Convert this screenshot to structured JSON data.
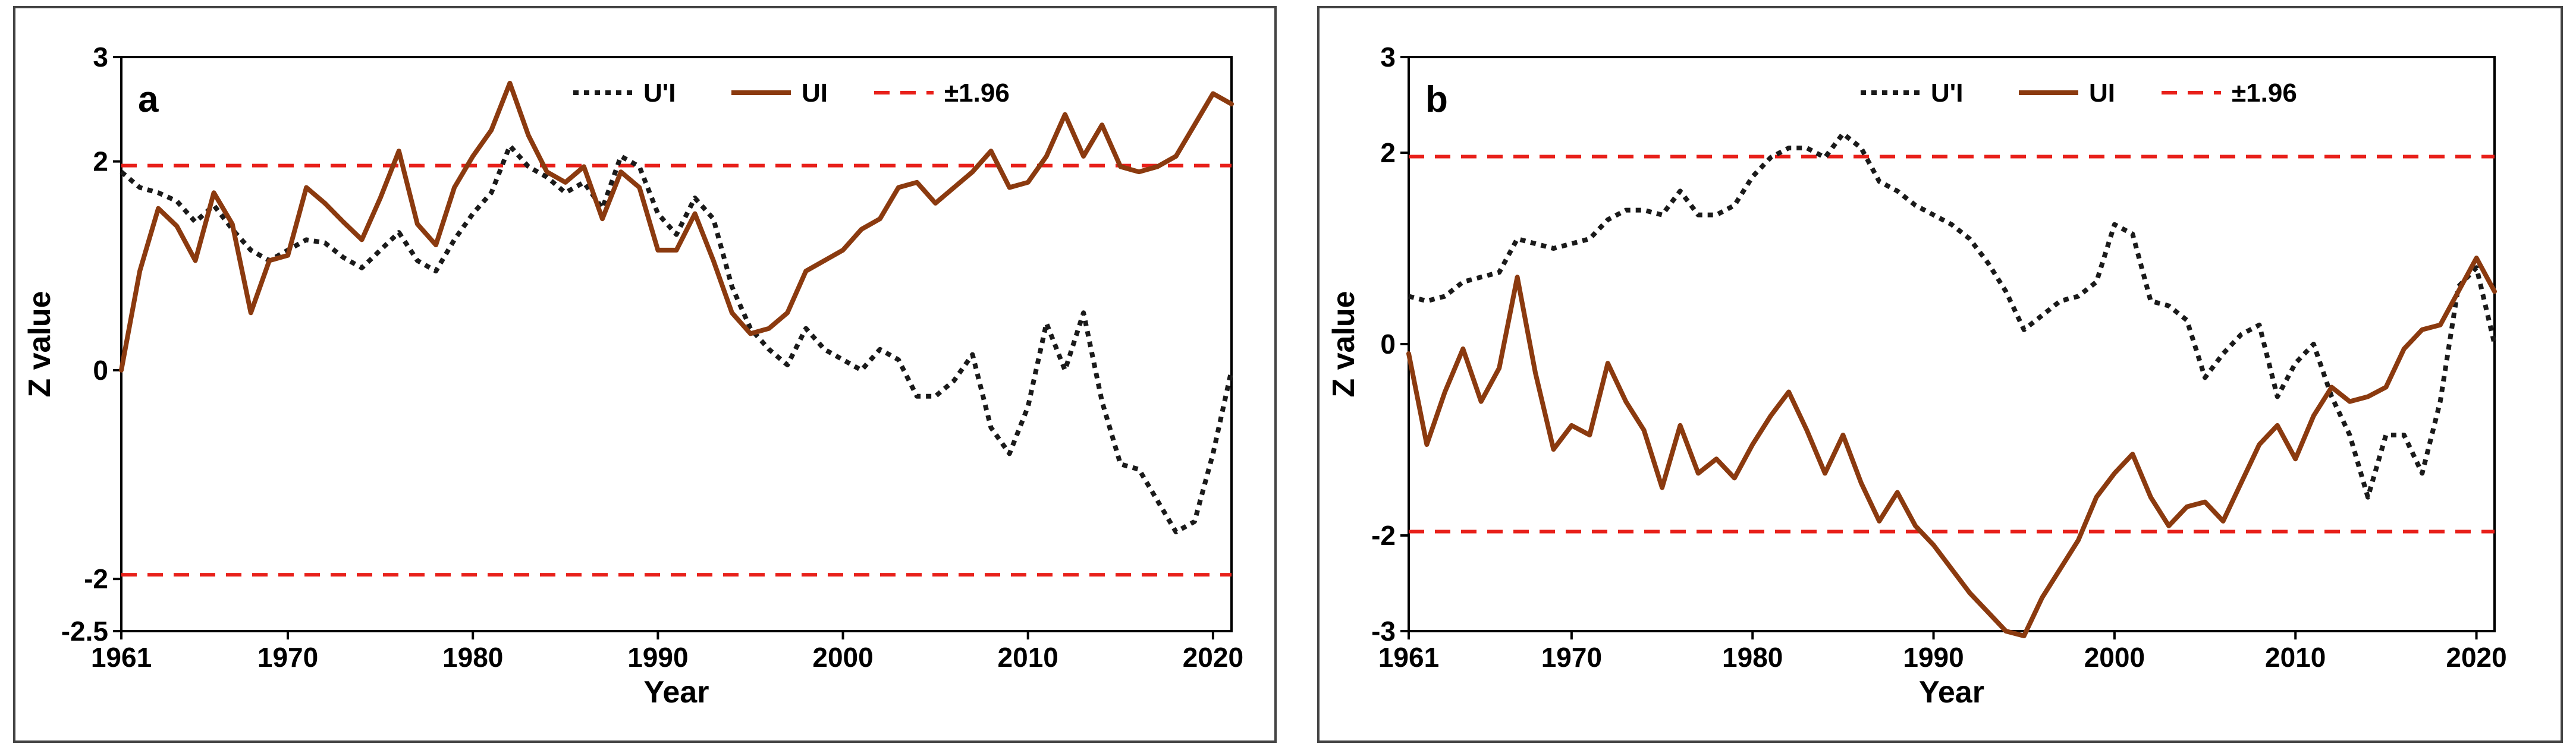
{
  "chart_data": [
    {
      "type": "line",
      "panel_label": "a",
      "xlabel": "Year",
      "ylabel": "Z value",
      "xlim": [
        1961,
        2021
      ],
      "ylim": [
        -2.5,
        3
      ],
      "x_ticks": [
        1961,
        1970,
        1980,
        1990,
        2000,
        2010,
        2020
      ],
      "x_tick_labels": [
        "1961",
        "1970",
        "1980",
        "1990",
        "2000",
        "2010",
        "2020"
      ],
      "y_ticks": [
        -2.5,
        -2,
        0,
        2,
        3
      ],
      "y_tick_labels": [
        "-2.5",
        "-2",
        "0",
        "2",
        "3"
      ],
      "threshold": 1.96,
      "x": [
        1961,
        1962,
        1963,
        1964,
        1965,
        1966,
        1967,
        1968,
        1969,
        1970,
        1971,
        1972,
        1973,
        1974,
        1975,
        1976,
        1977,
        1978,
        1979,
        1980,
        1981,
        1982,
        1983,
        1984,
        1985,
        1986,
        1987,
        1988,
        1989,
        1990,
        1991,
        1992,
        1993,
        1994,
        1995,
        1996,
        1997,
        1998,
        1999,
        2000,
        2001,
        2002,
        2003,
        2004,
        2005,
        2006,
        2007,
        2008,
        2009,
        2010,
        2011,
        2012,
        2013,
        2014,
        2015,
        2016,
        2017,
        2018,
        2019,
        2020,
        2021
      ],
      "series": [
        {
          "name": "U'I",
          "color": "#1a1a1a",
          "style": "dotted",
          "values": [
            1.9,
            1.75,
            1.7,
            1.62,
            1.42,
            1.58,
            1.35,
            1.15,
            1.05,
            1.15,
            1.25,
            1.22,
            1.08,
            0.98,
            1.15,
            1.32,
            1.05,
            0.95,
            1.25,
            1.5,
            1.7,
            2.15,
            1.95,
            1.85,
            1.7,
            1.8,
            1.55,
            2.05,
            1.95,
            1.5,
            1.3,
            1.65,
            1.45,
            0.8,
            0.4,
            0.2,
            0.05,
            0.4,
            0.2,
            0.1,
            0.0,
            0.2,
            0.1,
            -0.25,
            -0.25,
            -0.1,
            0.15,
            -0.55,
            -0.8,
            -0.35,
            0.45,
            0.0,
            0.55,
            -0.3,
            -0.9,
            -0.95,
            -1.25,
            -1.55,
            -1.45,
            -0.8,
            0.0
          ]
        },
        {
          "name": "UI",
          "color": "#8b3a0f",
          "style": "solid",
          "values": [
            0.0,
            0.95,
            1.55,
            1.38,
            1.05,
            1.7,
            1.4,
            0.55,
            1.05,
            1.1,
            1.75,
            1.6,
            1.42,
            1.25,
            1.65,
            2.1,
            1.4,
            1.2,
            1.75,
            2.05,
            2.3,
            2.75,
            2.25,
            1.9,
            1.8,
            1.95,
            1.45,
            1.9,
            1.75,
            1.15,
            1.15,
            1.5,
            1.05,
            0.55,
            0.35,
            0.4,
            0.55,
            0.95,
            1.05,
            1.15,
            1.35,
            1.45,
            1.75,
            1.8,
            1.6,
            1.75,
            1.9,
            2.1,
            1.75,
            1.8,
            2.05,
            2.45,
            2.05,
            2.35,
            1.95,
            1.9,
            1.95,
            2.05,
            2.35,
            2.65,
            2.55
          ]
        }
      ],
      "legend": [
        {
          "label": "U'I",
          "style": "dotted",
          "color": "#1a1a1a"
        },
        {
          "label": "UI",
          "style": "solid",
          "color": "#8b3a0f"
        },
        {
          "label": "±1.96",
          "style": "dashed",
          "color": "#e8201a"
        }
      ]
    },
    {
      "type": "line",
      "panel_label": "b",
      "xlabel": "Year",
      "ylabel": "Z value",
      "xlim": [
        1961,
        2021
      ],
      "ylim": [
        -3,
        3
      ],
      "x_ticks": [
        1961,
        1970,
        1980,
        1990,
        2000,
        2010,
        2020
      ],
      "x_tick_labels": [
        "1961",
        "1970",
        "1980",
        "1990",
        "2000",
        "2010",
        "2020"
      ],
      "y_ticks": [
        -3,
        -2,
        0,
        2,
        3
      ],
      "y_tick_labels": [
        "-3",
        "-2",
        "0",
        "2",
        "3"
      ],
      "threshold": 1.96,
      "x": [
        1961,
        1962,
        1963,
        1964,
        1965,
        1966,
        1967,
        1968,
        1969,
        1970,
        1971,
        1972,
        1973,
        1974,
        1975,
        1976,
        1977,
        1978,
        1979,
        1980,
        1981,
        1982,
        1983,
        1984,
        1985,
        1986,
        1987,
        1988,
        1989,
        1990,
        1991,
        1992,
        1993,
        1994,
        1995,
        1996,
        1997,
        1998,
        1999,
        2000,
        2001,
        2002,
        2003,
        2004,
        2005,
        2006,
        2007,
        2008,
        2009,
        2010,
        2011,
        2012,
        2013,
        2014,
        2015,
        2016,
        2017,
        2018,
        2019,
        2020,
        2021
      ],
      "series": [
        {
          "name": "U'I",
          "color": "#1a1a1a",
          "style": "dotted",
          "values": [
            0.5,
            0.45,
            0.5,
            0.65,
            0.7,
            0.75,
            1.1,
            1.05,
            1.0,
            1.05,
            1.1,
            1.3,
            1.4,
            1.4,
            1.35,
            1.6,
            1.35,
            1.35,
            1.45,
            1.75,
            1.95,
            2.05,
            2.05,
            1.95,
            2.2,
            2.05,
            1.7,
            1.6,
            1.45,
            1.35,
            1.25,
            1.1,
            0.85,
            0.55,
            0.15,
            0.3,
            0.45,
            0.5,
            0.65,
            1.25,
            1.15,
            0.45,
            0.4,
            0.25,
            -0.35,
            -0.1,
            0.1,
            0.2,
            -0.55,
            -0.2,
            0.0,
            -0.55,
            -0.95,
            -1.6,
            -0.95,
            -0.95,
            -1.35,
            -0.6,
            0.6,
            0.8,
            0.0
          ]
        },
        {
          "name": "UI",
          "color": "#8b3a0f",
          "style": "solid",
          "values": [
            -0.1,
            -1.05,
            -0.5,
            -0.05,
            -0.6,
            -0.25,
            0.7,
            -0.3,
            -1.1,
            -0.85,
            -0.95,
            -0.2,
            -0.6,
            -0.9,
            -1.5,
            -0.85,
            -1.35,
            -1.2,
            -1.4,
            -1.05,
            -0.75,
            -0.5,
            -0.9,
            -1.35,
            -0.95,
            -1.45,
            -1.85,
            -1.55,
            -1.9,
            -2.1,
            -2.35,
            -2.6,
            -2.8,
            -3.0,
            -3.05,
            -2.65,
            -2.35,
            -2.05,
            -1.6,
            -1.35,
            -1.15,
            -1.6,
            -1.9,
            -1.7,
            -1.65,
            -1.85,
            -1.45,
            -1.05,
            -0.85,
            -1.2,
            -0.75,
            -0.45,
            -0.6,
            -0.55,
            -0.45,
            -0.05,
            0.15,
            0.2,
            0.55,
            0.9,
            0.55
          ]
        }
      ],
      "legend": [
        {
          "label": "U'I",
          "style": "dotted",
          "color": "#1a1a1a"
        },
        {
          "label": "UI",
          "style": "solid",
          "color": "#8b3a0f"
        },
        {
          "label": "±1.96",
          "style": "dashed",
          "color": "#e8201a"
        }
      ]
    }
  ]
}
